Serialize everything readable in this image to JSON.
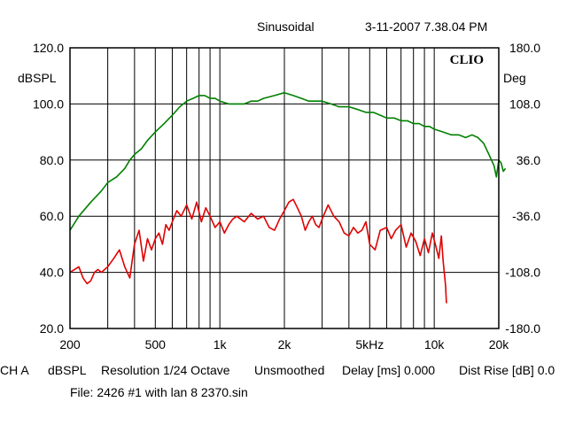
{
  "header": {
    "mode": "Sinusoidal",
    "timestamp": "3-11-2007 7.38.04 PM"
  },
  "footer": {
    "channel": "CH A",
    "unit": "dBSPL",
    "resolution": "Resolution 1/24 Octave",
    "smoothing": "Unsmoothed",
    "delay": "Delay [ms] 0.000",
    "dist_rise": "Dist Rise [dB] 0.0",
    "file": "File: 2426 #1 with lan 8 2370.sin"
  },
  "chart_data": {
    "type": "line",
    "brand": "CLIO",
    "x_scale": "log",
    "xlim": [
      200,
      20000
    ],
    "ylabel": "dBSPL",
    "ylim": [
      20,
      120
    ],
    "y2label": "Deg",
    "y2lim": [
      -180,
      180
    ],
    "grid": true,
    "x_ticks": [
      200,
      300,
      400,
      500,
      600,
      700,
      800,
      900,
      1000,
      2000,
      3000,
      4000,
      5000,
      6000,
      7000,
      8000,
      9000,
      10000,
      20000
    ],
    "x_tick_labels": [
      {
        "x": 200,
        "label": "200"
      },
      {
        "x": 500,
        "label": "500"
      },
      {
        "x": 1000,
        "label": "1k"
      },
      {
        "x": 2000,
        "label": "2k"
      },
      {
        "x": 5000,
        "label": "5kHz"
      },
      {
        "x": 10000,
        "label": "10k"
      },
      {
        "x": 20000,
        "label": "20k"
      }
    ],
    "y_ticks": [
      20,
      40,
      60,
      80,
      100,
      120
    ],
    "y_tick_labels": [
      "20.0",
      "40.0",
      "60.0",
      "80.0",
      "100.0",
      "120.0"
    ],
    "y2_ticks": [
      -180,
      -108,
      -36,
      36,
      108,
      180
    ],
    "y2_tick_labels": [
      "-180.0",
      "-108.0",
      "-36.0",
      "36.0",
      "108.0",
      "180.0"
    ],
    "series": [
      {
        "color": "#008000",
        "axis": "left",
        "x": [
          200,
          220,
          250,
          280,
          300,
          330,
          360,
          380,
          400,
          430,
          460,
          500,
          550,
          600,
          650,
          700,
          750,
          800,
          850,
          900,
          950,
          1000,
          1100,
          1200,
          1300,
          1400,
          1500,
          1600,
          1800,
          2000,
          2200,
          2400,
          2600,
          2800,
          3000,
          3300,
          3600,
          4000,
          4400,
          4800,
          5200,
          5600,
          6000,
          6500,
          7000,
          7500,
          8000,
          8500,
          9000,
          9500,
          10000,
          11000,
          12000,
          13000,
          14000,
          15000,
          16000,
          17000,
          18000,
          19000,
          19500,
          20000,
          20500,
          21000,
          21500
        ],
        "values": [
          55,
          60,
          65,
          69,
          72,
          74,
          77,
          80,
          82,
          84,
          87,
          90,
          93,
          96,
          99,
          101,
          102,
          103,
          103,
          102,
          102,
          101,
          100,
          100,
          100,
          101,
          101,
          102,
          103,
          104,
          103,
          102,
          101,
          101,
          101,
          100,
          99,
          99,
          98,
          97,
          97,
          96,
          95,
          95,
          94,
          94,
          93,
          93,
          92,
          92,
          91,
          90,
          89,
          89,
          88,
          89,
          88,
          86,
          82,
          78,
          74,
          80,
          79,
          76,
          77
        ]
      },
      {
        "color": "#e00000",
        "axis": "left",
        "x": [
          200,
          210,
          220,
          230,
          240,
          250,
          260,
          270,
          280,
          300,
          320,
          340,
          360,
          380,
          400,
          420,
          440,
          460,
          480,
          500,
          520,
          540,
          560,
          580,
          600,
          630,
          660,
          700,
          740,
          780,
          820,
          860,
          900,
          950,
          1000,
          1050,
          1100,
          1150,
          1200,
          1300,
          1400,
          1500,
          1600,
          1700,
          1800,
          1900,
          2000,
          2100,
          2200,
          2300,
          2400,
          2500,
          2600,
          2700,
          2800,
          2900,
          3000,
          3200,
          3400,
          3600,
          3800,
          4000,
          4200,
          4400,
          4600,
          4800,
          5000,
          5300,
          5600,
          6000,
          6300,
          6600,
          7000,
          7400,
          7800,
          8200,
          8600,
          9000,
          9400,
          9800,
          10200,
          10500,
          10800,
          11000,
          11200,
          11300,
          11400
        ],
        "values": [
          40,
          41,
          42,
          38,
          36,
          37,
          40,
          41,
          40,
          42,
          45,
          48,
          42,
          38,
          50,
          55,
          44,
          52,
          48,
          52,
          54,
          50,
          57,
          55,
          58,
          62,
          60,
          64,
          59,
          65,
          58,
          63,
          60,
          56,
          58,
          54,
          57,
          59,
          60,
          58,
          61,
          59,
          60,
          56,
          55,
          59,
          62,
          65,
          66,
          63,
          60,
          55,
          58,
          60,
          57,
          56,
          59,
          64,
          60,
          58,
          54,
          53,
          56,
          54,
          55,
          58,
          50,
          48,
          55,
          56,
          52,
          55,
          57,
          49,
          54,
          51,
          46,
          52,
          47,
          54,
          49,
          45,
          53,
          44,
          38,
          35,
          29
        ]
      }
    ]
  }
}
